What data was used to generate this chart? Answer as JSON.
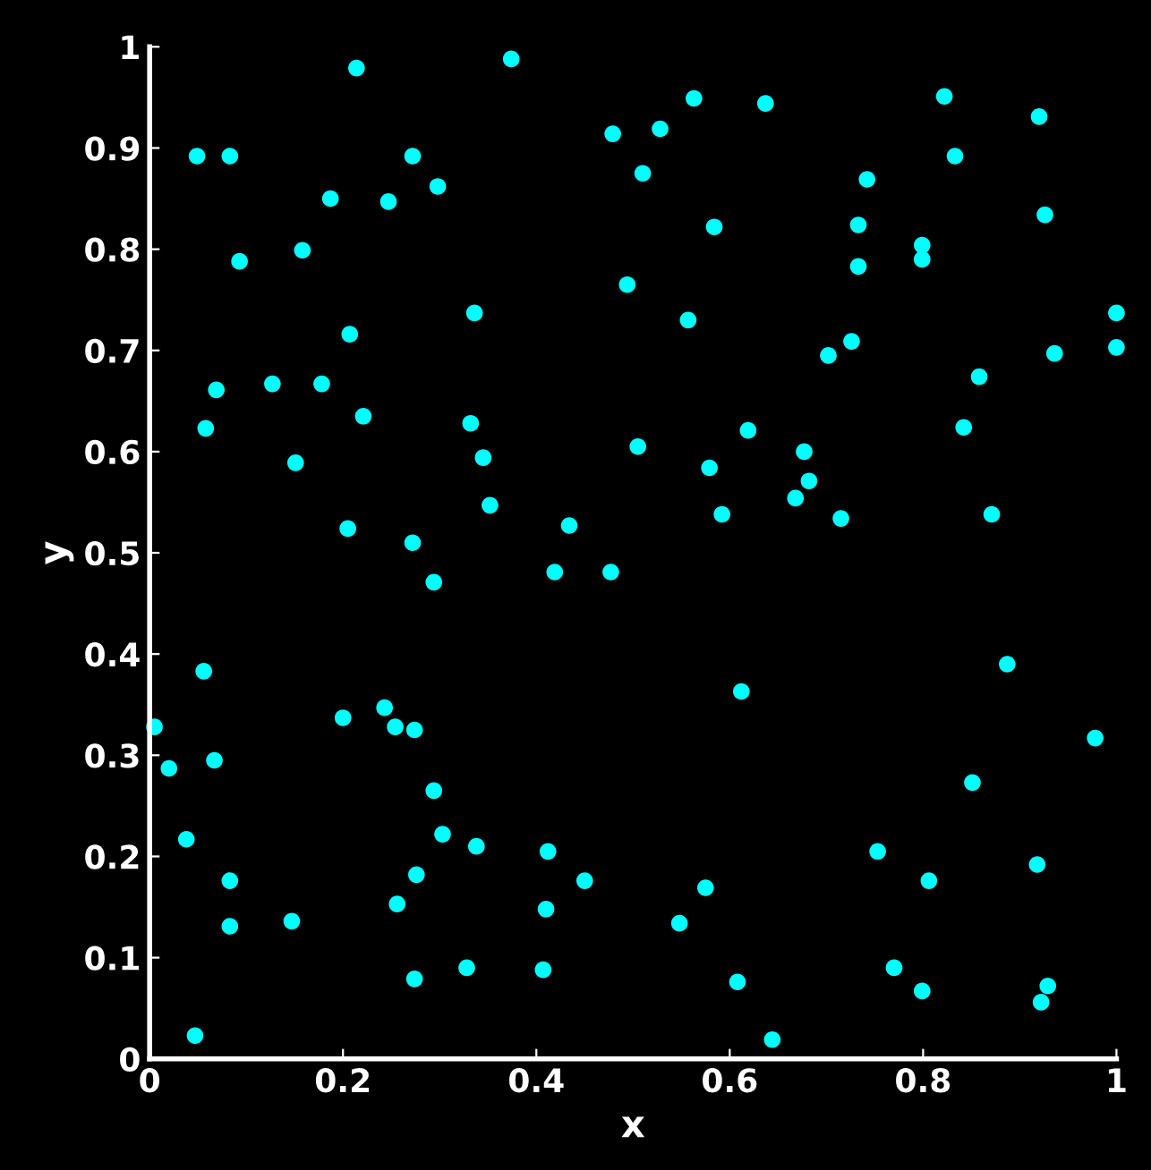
{
  "chart_data": {
    "type": "scatter",
    "xlabel": "x",
    "ylabel": "y",
    "xlim": [
      0,
      1
    ],
    "ylim": [
      0,
      1
    ],
    "xticks": [
      0,
      0.2,
      0.4,
      0.6,
      0.8,
      1
    ],
    "yticks": [
      0,
      0.1,
      0.2,
      0.3,
      0.4,
      0.5,
      0.6,
      0.7,
      0.8,
      0.9,
      1
    ],
    "grid": false,
    "legend": false,
    "marker": "circle",
    "series": [
      {
        "color": "#00ffff",
        "x": [
          0.214,
          0.374,
          0.049,
          0.083,
          0.272,
          0.298,
          0.187,
          0.247,
          0.093,
          0.158,
          0.336,
          0.207,
          0.069,
          0.127,
          0.178,
          0.221,
          0.058,
          0.151,
          0.332,
          0.345,
          0.352,
          0.205,
          0.272,
          0.294,
          0.434,
          0.419,
          0.477,
          0.563,
          0.637,
          0.479,
          0.528,
          0.51,
          0.584,
          0.494,
          0.557,
          0.742,
          0.733,
          0.733,
          0.799,
          0.799,
          0.822,
          0.833,
          0.92,
          0.926,
          1.0,
          0.936,
          1.0,
          0.858,
          0.842,
          0.726,
          0.702,
          0.505,
          0.619,
          0.579,
          0.677,
          0.682,
          0.668,
          0.592,
          0.715,
          0.871,
          0.056,
          0.005,
          0.02,
          0.067,
          0.2,
          0.243,
          0.254,
          0.274,
          0.294,
          0.303,
          0.338,
          0.412,
          0.276,
          0.256,
          0.083,
          0.038,
          0.083,
          0.147,
          0.274,
          0.328,
          0.407,
          0.047,
          0.41,
          0.887,
          0.612,
          0.978,
          0.851,
          0.753,
          0.806,
          0.918,
          0.45,
          0.575,
          0.548,
          0.77,
          0.799,
          0.608,
          0.644,
          0.929,
          0.922
        ],
        "values": [
          0.979,
          0.988,
          0.892,
          0.892,
          0.892,
          0.862,
          0.85,
          0.847,
          0.788,
          0.799,
          0.737,
          0.716,
          0.661,
          0.667,
          0.667,
          0.635,
          0.623,
          0.589,
          0.628,
          0.594,
          0.547,
          0.524,
          0.51,
          0.471,
          0.527,
          0.481,
          0.481,
          0.949,
          0.944,
          0.914,
          0.919,
          0.875,
          0.822,
          0.765,
          0.73,
          0.869,
          0.824,
          0.783,
          0.804,
          0.79,
          0.951,
          0.892,
          0.931,
          0.834,
          0.737,
          0.697,
          0.703,
          0.674,
          0.624,
          0.709,
          0.695,
          0.605,
          0.621,
          0.584,
          0.6,
          0.571,
          0.554,
          0.538,
          0.534,
          0.538,
          0.383,
          0.328,
          0.287,
          0.295,
          0.337,
          0.347,
          0.328,
          0.325,
          0.265,
          0.222,
          0.21,
          0.205,
          0.182,
          0.153,
          0.176,
          0.217,
          0.131,
          0.136,
          0.079,
          0.09,
          0.088,
          0.023,
          0.148,
          0.39,
          0.363,
          0.317,
          0.273,
          0.205,
          0.176,
          0.192,
          0.176,
          0.169,
          0.134,
          0.09,
          0.067,
          0.076,
          0.019,
          0.072,
          0.056
        ]
      }
    ]
  }
}
